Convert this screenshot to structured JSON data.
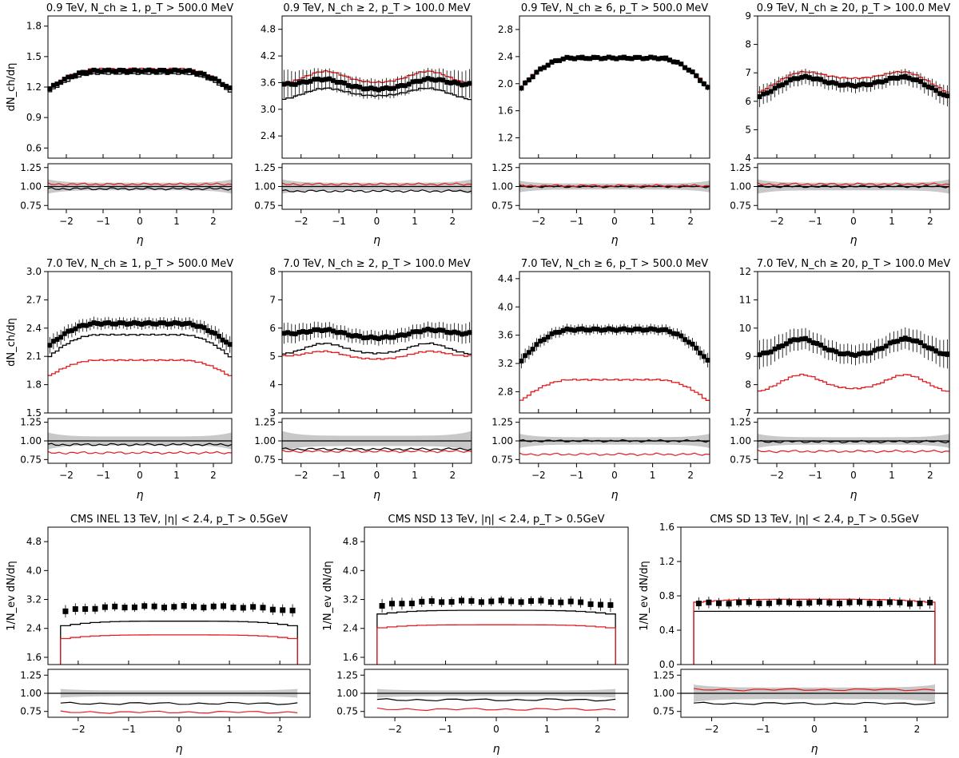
{
  "chart_data": [
    {
      "type": "line",
      "title": "0.9 TeV, N_ch ≥ 1, p_T > 500.0 MeV",
      "ylabel": "dN_ch/dη",
      "xlabel": "η",
      "xlim": [
        -2.5,
        2.5
      ],
      "ylim": [
        0.5,
        1.9
      ],
      "yticks": [
        0.6,
        0.9,
        1.2,
        1.5,
        1.8
      ],
      "xticks": [
        -2,
        -1,
        0,
        1,
        2
      ],
      "ratio_ylim": [
        0.7,
        1.3
      ],
      "ratio_yticks": [
        0.75,
        1.0,
        1.25
      ],
      "profile": "bump",
      "data_level": [
        1.17,
        1.36
      ],
      "err": 0.015,
      "series": [
        {
          "name": "black model",
          "color": "#000000",
          "level": [
            1.14,
            1.33
          ]
        },
        {
          "name": "red model",
          "color": "#e41a1c",
          "level": [
            1.17,
            1.38
          ]
        }
      ],
      "ratio": [
        {
          "color": "#000000",
          "level": 0.97
        },
        {
          "color": "#e41a1c",
          "level": 1.03
        }
      ],
      "band": 0.05,
      "points": "dense"
    },
    {
      "type": "line",
      "title": "0.9 TeV, N_ch ≥ 2, p_T > 100.0 MeV",
      "ylabel": "",
      "xlabel": "η",
      "xlim": [
        -2.5,
        2.5
      ],
      "ylim": [
        1.9,
        5.1
      ],
      "yticks": [
        2.4,
        3.0,
        3.6,
        4.2,
        4.8
      ],
      "xticks": [
        -2,
        -1,
        0,
        1,
        2
      ],
      "ratio_ylim": [
        0.7,
        1.3
      ],
      "ratio_yticks": [
        0.75,
        1.0,
        1.25
      ],
      "profile": "dip",
      "data_level": [
        3.55,
        3.75,
        3.45
      ],
      "err": 0.22,
      "series": [
        {
          "name": "black model",
          "color": "#000000",
          "level": [
            3.2,
            3.48,
            3.3
          ]
        },
        {
          "name": "red model",
          "color": "#e41a1c",
          "level": [
            3.55,
            3.85,
            3.6
          ]
        }
      ],
      "ratio": [
        {
          "color": "#000000",
          "level": 0.94
        },
        {
          "color": "#e41a1c",
          "level": 1.03
        }
      ],
      "band": 0.05,
      "points": "dense"
    },
    {
      "type": "line",
      "title": "0.9 TeV, N_ch ≥ 6, p_T > 500.0 MeV",
      "ylabel": "",
      "xlabel": "η",
      "xlim": [
        -2.5,
        2.5
      ],
      "ylim": [
        0.9,
        3.0
      ],
      "yticks": [
        1.2,
        1.6,
        2.0,
        2.4,
        2.8
      ],
      "xticks": [
        -2,
        -1,
        0,
        1,
        2
      ],
      "ratio_ylim": [
        0.7,
        1.3
      ],
      "ratio_yticks": [
        0.75,
        1.0,
        1.25
      ],
      "profile": "bump",
      "data_level": [
        1.9,
        2.38
      ],
      "err": 0.03,
      "series": [
        {
          "name": "black model",
          "color": "#000000",
          "level": [
            1.9,
            2.36
          ]
        },
        {
          "name": "red model",
          "color": "#e41a1c",
          "level": [
            1.92,
            2.39
          ]
        }
      ],
      "ratio": [
        {
          "color": "#000000",
          "level": 1.0
        },
        {
          "color": "#e41a1c",
          "level": 1.01
        }
      ],
      "band": 0.04,
      "points": "dense"
    },
    {
      "type": "line",
      "title": "0.9 TeV, N_ch ≥ 20, p_T > 100.0 MeV",
      "ylabel": "",
      "xlabel": "η",
      "xlim": [
        -2.5,
        2.5
      ],
      "ylim": [
        4,
        9
      ],
      "yticks": [
        4,
        5,
        6,
        7,
        8,
        9
      ],
      "xticks": [
        -2,
        -1,
        0,
        1,
        2
      ],
      "ratio_ylim": [
        0.7,
        1.3
      ],
      "ratio_yticks": [
        0.75,
        1.0,
        1.25
      ],
      "profile": "dip",
      "data_level": [
        6.1,
        6.9,
        6.55
      ],
      "err": 0.25,
      "series": [
        {
          "name": "black model",
          "color": "#000000",
          "level": [
            6.1,
            6.85,
            6.55
          ]
        },
        {
          "name": "red model",
          "color": "#e41a1c",
          "level": [
            6.25,
            7.1,
            6.8
          ]
        }
      ],
      "ratio": [
        {
          "color": "#000000",
          "level": 1.0
        },
        {
          "color": "#e41a1c",
          "level": 1.03
        }
      ],
      "band": 0.05,
      "points": "dense"
    },
    {
      "type": "line",
      "title": "7.0 TeV, N_ch ≥ 1, p_T > 500.0 MeV",
      "ylabel": "dN_ch/dη",
      "xlabel": "η",
      "xlim": [
        -2.5,
        2.5
      ],
      "ylim": [
        1.5,
        3.0
      ],
      "yticks": [
        1.5,
        1.8,
        2.1,
        2.4,
        2.7,
        3.0
      ],
      "xticks": [
        -2,
        -1,
        0,
        1,
        2
      ],
      "ratio_ylim": [
        0.7,
        1.3
      ],
      "ratio_yticks": [
        0.75,
        1.0,
        1.25
      ],
      "profile": "bump",
      "data_level": [
        2.2,
        2.45
      ],
      "err": 0.06,
      "series": [
        {
          "name": "black model",
          "color": "#000000",
          "level": [
            2.08,
            2.33
          ]
        },
        {
          "name": "red model",
          "color": "#e41a1c",
          "level": [
            1.88,
            2.06
          ]
        }
      ],
      "ratio": [
        {
          "color": "#000000",
          "level": 0.95
        },
        {
          "color": "#e41a1c",
          "level": 0.84
        }
      ],
      "band": 0.06,
      "points": "dense"
    },
    {
      "type": "line",
      "title": "7.0 TeV, N_ch ≥ 2, p_T > 100.0 MeV",
      "ylabel": "",
      "xlabel": "η",
      "xlim": [
        -2.5,
        2.5
      ],
      "ylim": [
        3,
        8
      ],
      "yticks": [
        3,
        4,
        5,
        6,
        7,
        8
      ],
      "xticks": [
        -2,
        -1,
        0,
        1,
        2
      ],
      "ratio_ylim": [
        0.7,
        1.3
      ],
      "ratio_yticks": [
        0.75,
        1.0,
        1.25
      ],
      "profile": "dip",
      "data_level": [
        5.8,
        6.05,
        5.65
      ],
      "err": 0.25,
      "series": [
        {
          "name": "black model",
          "color": "#000000",
          "level": [
            5.05,
            5.45,
            5.1
          ]
        },
        {
          "name": "red model",
          "color": "#e41a1c",
          "level": [
            5.0,
            5.25,
            4.9
          ]
        }
      ],
      "ratio": [
        {
          "color": "#000000",
          "level": 0.89
        },
        {
          "color": "#e41a1c",
          "level": 0.86
        }
      ],
      "band": 0.07,
      "points": "dense"
    },
    {
      "type": "line",
      "title": "7.0 TeV, N_ch ≥ 6, p_T > 500.0 MeV",
      "ylabel": "",
      "xlabel": "η",
      "xlim": [
        -2.5,
        2.5
      ],
      "ylim": [
        2.5,
        4.5
      ],
      "yticks": [
        2.8,
        3.2,
        3.6,
        4.0,
        4.4
      ],
      "xticks": [
        -2,
        -1,
        0,
        1,
        2
      ],
      "ratio_ylim": [
        0.7,
        1.3
      ],
      "ratio_yticks": [
        0.75,
        1.0,
        1.25
      ],
      "profile": "bump",
      "data_level": [
        3.2,
        3.68
      ],
      "err": 0.07,
      "series": [
        {
          "name": "black model",
          "color": "#000000",
          "level": [
            3.2,
            3.67
          ]
        },
        {
          "name": "red model",
          "color": "#e41a1c",
          "level": [
            2.65,
            2.97
          ]
        }
      ],
      "ratio": [
        {
          "color": "#000000",
          "level": 1.0
        },
        {
          "color": "#e41a1c",
          "level": 0.82
        }
      ],
      "band": 0.05,
      "points": "dense"
    },
    {
      "type": "line",
      "title": "7.0 TeV, N_ch ≥ 20, p_T > 100.0 MeV",
      "ylabel": "",
      "xlabel": "η",
      "xlim": [
        -2.5,
        2.5
      ],
      "ylim": [
        7,
        12
      ],
      "yticks": [
        7,
        8,
        9,
        10,
        11,
        12
      ],
      "xticks": [
        -2,
        -1,
        0,
        1,
        2
      ],
      "ratio_ylim": [
        0.7,
        1.3
      ],
      "ratio_yticks": [
        0.75,
        1.0,
        1.25
      ],
      "profile": "dip",
      "data_level": [
        9.0,
        9.6,
        9.05
      ],
      "err": 0.35,
      "series": [
        {
          "name": "black model",
          "color": "#000000",
          "level": [
            8.95,
            9.55,
            9.05
          ]
        },
        {
          "name": "red model",
          "color": "#e41a1c",
          "level": [
            7.7,
            8.35,
            7.85
          ]
        }
      ],
      "ratio": [
        {
          "color": "#000000",
          "level": 0.99
        },
        {
          "color": "#e41a1c",
          "level": 0.86
        }
      ],
      "band": 0.05,
      "points": "dense"
    },
    {
      "type": "line",
      "title": "CMS INEL 13 TeV, |η| < 2.4, p_T > 0.5GeV",
      "ylabel": "1/N_ev dN/dη",
      "xlabel": "η",
      "xlim": [
        -2.6,
        2.6
      ],
      "ylim": [
        1.4,
        5.2
      ],
      "yticks": [
        1.6,
        2.4,
        3.2,
        4.0,
        4.8
      ],
      "xticks": [
        -2,
        -1,
        0,
        1,
        2
      ],
      "ratio_ylim": [
        0.67,
        1.33
      ],
      "ratio_yticks": [
        0.75,
        1.0,
        1.25
      ],
      "profile": "flat",
      "data_level": [
        2.85,
        3.0
      ],
      "err": 0.12,
      "series": [
        {
          "name": "black model",
          "color": "#000000",
          "level": [
            2.45,
            2.6
          ]
        },
        {
          "name": "red model",
          "color": "#e41a1c",
          "level": [
            2.1,
            2.22
          ]
        }
      ],
      "ratio": [
        {
          "color": "#000000",
          "level": 0.86
        },
        {
          "color": "#e41a1c",
          "level": 0.74
        }
      ],
      "band": 0.04,
      "points": "sparse"
    },
    {
      "type": "line",
      "title": "CMS NSD 13 TeV, |η| < 2.4, p_T > 0.5GeV",
      "ylabel": "1/N_ev dN/dη",
      "xlabel": "η",
      "xlim": [
        -2.6,
        2.6
      ],
      "ylim": [
        1.4,
        5.2
      ],
      "yticks": [
        1.6,
        2.4,
        3.2,
        4.0,
        4.8
      ],
      "xticks": [
        -2,
        -1,
        0,
        1,
        2
      ],
      "ratio_ylim": [
        0.67,
        1.33
      ],
      "ratio_yticks": [
        0.75,
        1.0,
        1.25
      ],
      "profile": "flat",
      "data_level": [
        3.0,
        3.15
      ],
      "err": 0.13,
      "series": [
        {
          "name": "black model",
          "color": "#000000",
          "level": [
            2.78,
            2.9
          ]
        },
        {
          "name": "red model",
          "color": "#e41a1c",
          "level": [
            2.4,
            2.5
          ]
        }
      ],
      "ratio": [
        {
          "color": "#000000",
          "level": 0.91
        },
        {
          "color": "#e41a1c",
          "level": 0.78
        }
      ],
      "band": 0.04,
      "points": "sparse"
    },
    {
      "type": "line",
      "title": "CMS SD 13 TeV, |η| < 2.4, p_T > 0.5GeV",
      "ylabel": "1/N_ev dN/dη",
      "xlabel": "η",
      "xlim": [
        -2.6,
        2.6
      ],
      "ylim": [
        0.0,
        1.6
      ],
      "yticks": [
        0.0,
        0.4,
        0.8,
        1.2,
        1.6
      ],
      "xticks": [
        -2,
        -1,
        0,
        1,
        2
      ],
      "ratio_ylim": [
        0.67,
        1.33
      ],
      "ratio_yticks": [
        0.75,
        1.0,
        1.25
      ],
      "profile": "flat",
      "data_level": [
        0.71,
        0.72
      ],
      "err": 0.05,
      "series": [
        {
          "name": "black model",
          "color": "#000000",
          "level": [
            0.62,
            0.62
          ]
        },
        {
          "name": "red model",
          "color": "#e41a1c",
          "level": [
            0.72,
            0.76
          ]
        }
      ],
      "ratio": [
        {
          "color": "#000000",
          "level": 0.86
        },
        {
          "color": "#e41a1c",
          "level": 1.05
        }
      ],
      "band": 0.08,
      "points": "sparse"
    }
  ]
}
